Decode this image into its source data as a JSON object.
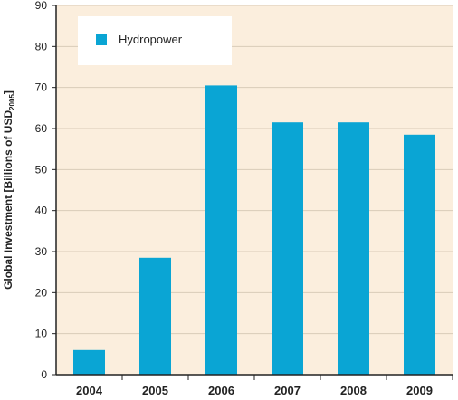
{
  "chart_data": {
    "type": "bar",
    "categories": [
      "2004",
      "2005",
      "2006",
      "2007",
      "2008",
      "2009"
    ],
    "series": [
      {
        "name": "Hydropower",
        "values": [
          6,
          28.5,
          70.5,
          61.5,
          61.5,
          58.5
        ],
        "color": "#0aa5d4"
      }
    ],
    "ylabel_main": "Global Investment [Billions of USD",
    "ylabel_sub": "2005",
    "ylabel_end": "]",
    "xlabel": "",
    "ylim": [
      0,
      90
    ],
    "yticks": [
      0,
      10,
      20,
      30,
      40,
      50,
      60,
      70,
      80,
      90
    ],
    "legend_position": "top-left",
    "grid": true,
    "plot_background": "#fbeedd",
    "grid_color": "#d9cbb8"
  }
}
